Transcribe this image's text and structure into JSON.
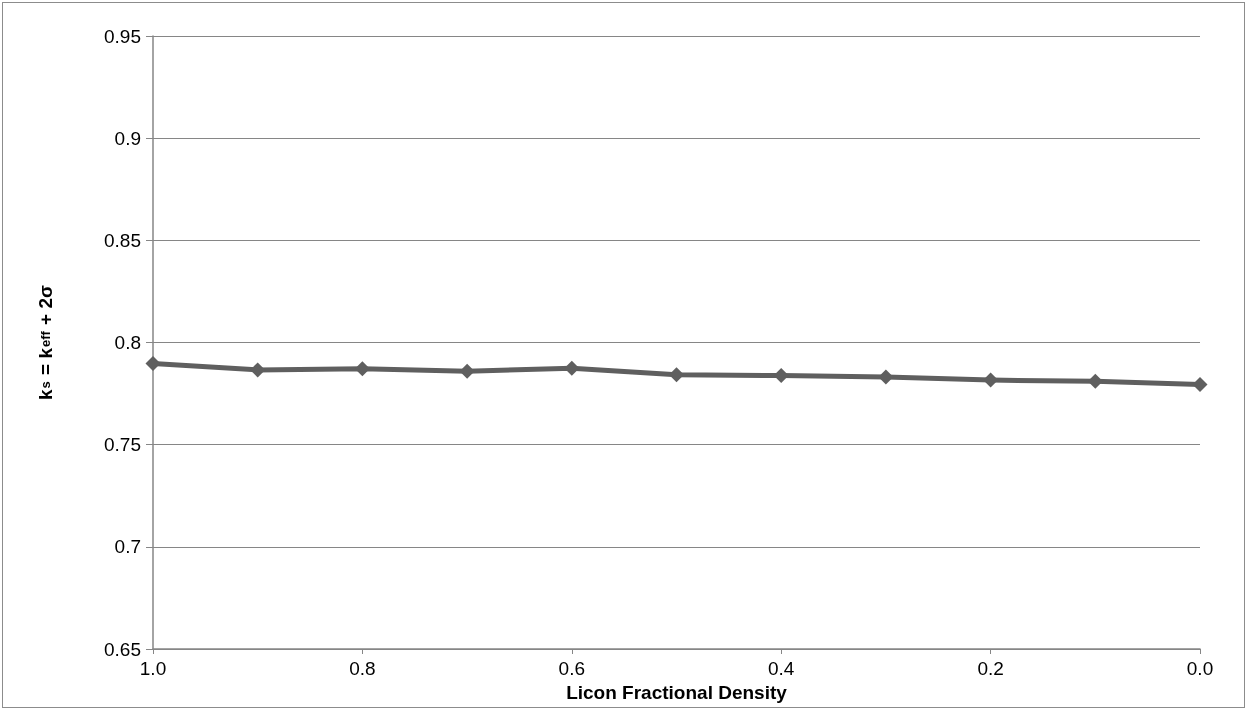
{
  "chart_data": {
    "type": "line",
    "xlabel": "Licon Fractional Density",
    "ylabel": "k$_{s}$ = k$_{eff}$ + 2σ",
    "x": [
      1.0,
      0.9,
      0.8,
      0.7,
      0.6,
      0.5,
      0.4,
      0.3,
      0.2,
      0.1,
      0.0
    ],
    "series": [
      {
        "color": "#5f5f5f",
        "values": [
          0.7897,
          0.7866,
          0.7872,
          0.7859,
          0.7874,
          0.7842,
          0.7838,
          0.7831,
          0.7816,
          0.781,
          0.7795
        ]
      }
    ],
    "xlim": [
      1,
      0
    ],
    "xticks": [
      {
        "value": 1,
        "label": "1.0"
      },
      0.8,
      0.6,
      0.4,
      0.2,
      {
        "value": 0,
        "label": "0.0"
      }
    ],
    "ylim": [
      0.65,
      0.95
    ],
    "yticks": [
      0.65,
      0.7,
      0.75,
      0.8,
      0.85,
      0.9,
      0.95
    ],
    "grid": "y",
    "marker": "diamond",
    "line_style": "solid"
  }
}
